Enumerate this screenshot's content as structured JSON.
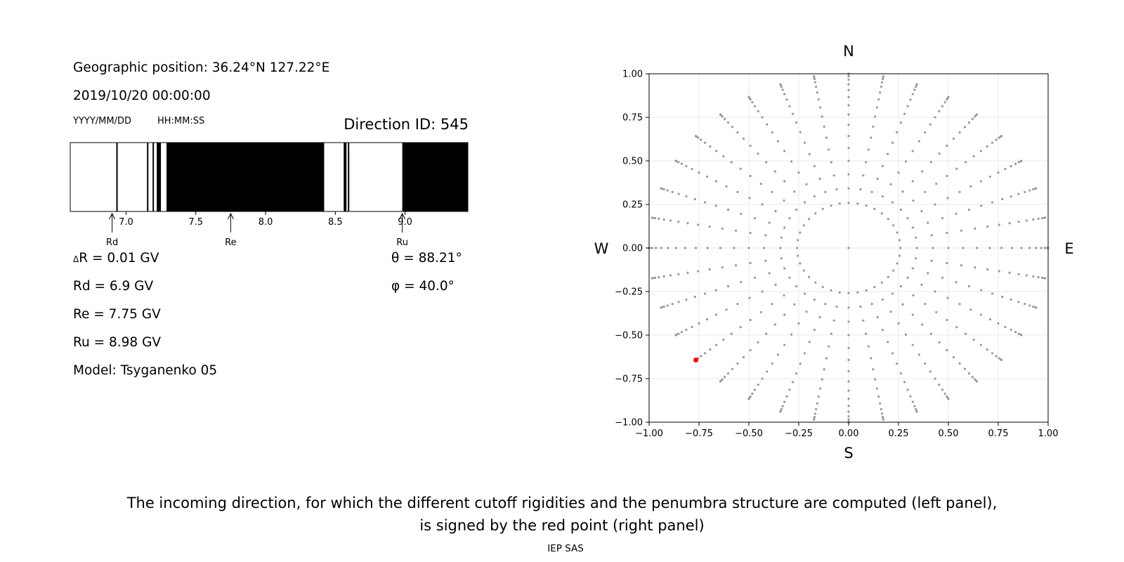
{
  "left_panel": {
    "position": "Geographic position: 36.24°N 127.22°E",
    "datetime": "2019/10/20 00:00:00",
    "date_format": "YYYY/MM/DD",
    "time_format": "HH:MM:SS",
    "direction_id": "Direction ID: 545",
    "delta_r": "R = 0.01 GV",
    "delta_symbol": "Δ",
    "rd": "Rd = 6.9 GV",
    "re": "Re = 7.75 GV",
    "ru": "Ru = 8.98 GV",
    "model": "Model: Tsyganenko 05",
    "theta": "θ = 88.21°",
    "phi": "φ = 40.0°"
  },
  "penumbra_chart": {
    "type": "bar",
    "xlim": [
      6.6,
      9.45
    ],
    "xticks": [
      "7.0",
      "7.5",
      "8.0",
      "8.5",
      "9.0"
    ],
    "xtick_values": [
      7.0,
      7.5,
      8.0,
      8.5,
      9.0
    ],
    "forbidden_bands": [
      [
        6.93,
        6.94
      ],
      [
        7.15,
        7.16
      ],
      [
        7.19,
        7.2
      ],
      [
        7.22,
        7.25
      ],
      [
        7.29,
        8.42
      ],
      [
        8.56,
        8.58
      ],
      [
        8.59,
        8.6
      ],
      [
        8.98,
        9.45
      ]
    ],
    "markers": [
      {
        "label": "Rd",
        "value": 6.9
      },
      {
        "label": "Re",
        "value": 7.75
      },
      {
        "label": "Ru",
        "value": 8.98
      }
    ]
  },
  "direction_chart": {
    "type": "scatter",
    "xlim": [
      -1.0,
      1.0
    ],
    "ylim": [
      -1.0,
      1.0
    ],
    "xticks": [
      "−1.00",
      "−0.75",
      "−0.50",
      "−0.25",
      "0.00",
      "0.25",
      "0.50",
      "0.75",
      "1.00"
    ],
    "yticks": [
      "1.00",
      "0.75",
      "0.50",
      "0.25",
      "0.00",
      "−0.25",
      "−0.50",
      "−0.75",
      "−1.00"
    ],
    "tick_values": [
      -1.0,
      -0.75,
      -0.5,
      -0.25,
      0.0,
      0.25,
      0.5,
      0.75,
      1.0
    ],
    "grid": true,
    "point_color": "#999999",
    "highlight_color": "#ff0000",
    "highlight_point": {
      "x": -0.766,
      "y": -0.643
    },
    "compass": {
      "north": "N",
      "south": "S",
      "west": "W",
      "east": "E"
    }
  },
  "caption": {
    "line1": "The incoming direction, for which the different cutoff rigidities and the penumbra structure are computed (left panel),",
    "line2": "is signed by the red point (right panel)"
  },
  "credit": "IEP SAS"
}
